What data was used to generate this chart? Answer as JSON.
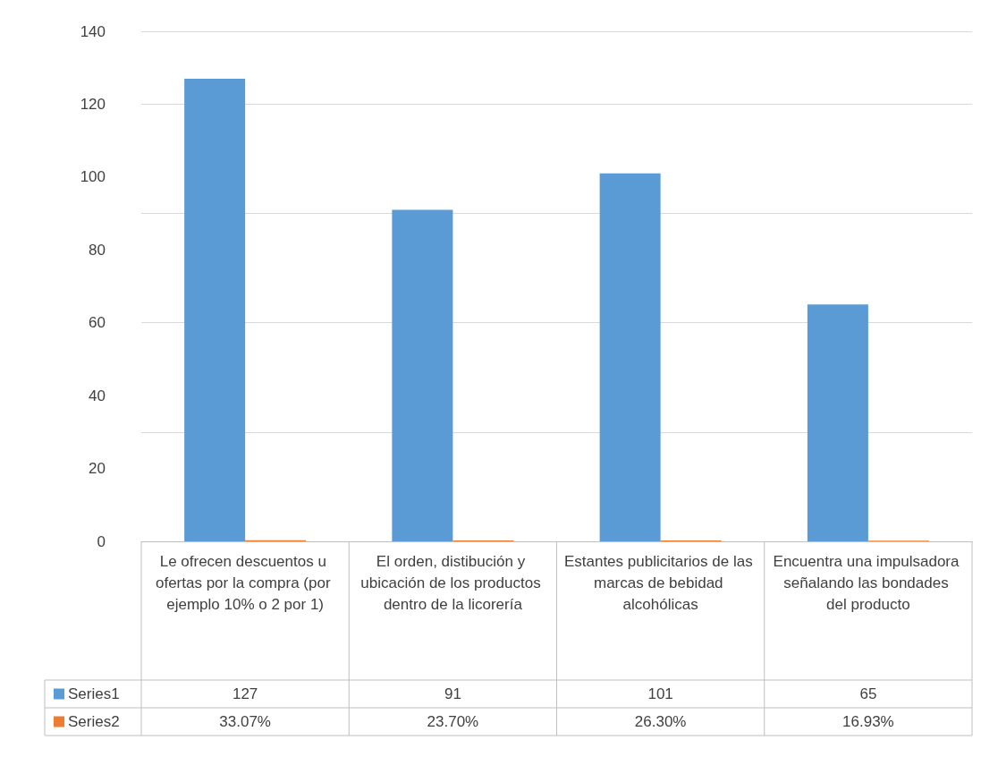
{
  "chart_data": {
    "type": "bar",
    "categories": [
      "Le ofrecen descuentos u ofertas por la compra (por ejemplo 10% o 2 por 1)",
      "El orden, distibución y ubicación de los productos dentro de la licorería",
      "Estantes publicitarios de las marcas de bebidad alcohólicas",
      "Encuentra una impulsadora señalando las bondades del producto"
    ],
    "series": [
      {
        "name": "Series1",
        "color": "#5b9bd5",
        "values": [
          127,
          91,
          101,
          65
        ],
        "value_labels": [
          "127",
          "91",
          "101",
          "65"
        ]
      },
      {
        "name": "Series2",
        "color": "#ed7d31",
        "values": [
          0.3307,
          0.237,
          0.263,
          0.1693
        ],
        "value_labels": [
          "33.07%",
          "23.70%",
          "26.30%",
          "16.93%"
        ]
      }
    ],
    "ylim": [
      0,
      140
    ],
    "yticks": [
      0,
      20,
      40,
      60,
      80,
      100,
      120,
      140
    ],
    "grid": "y",
    "legend": "bottom"
  }
}
